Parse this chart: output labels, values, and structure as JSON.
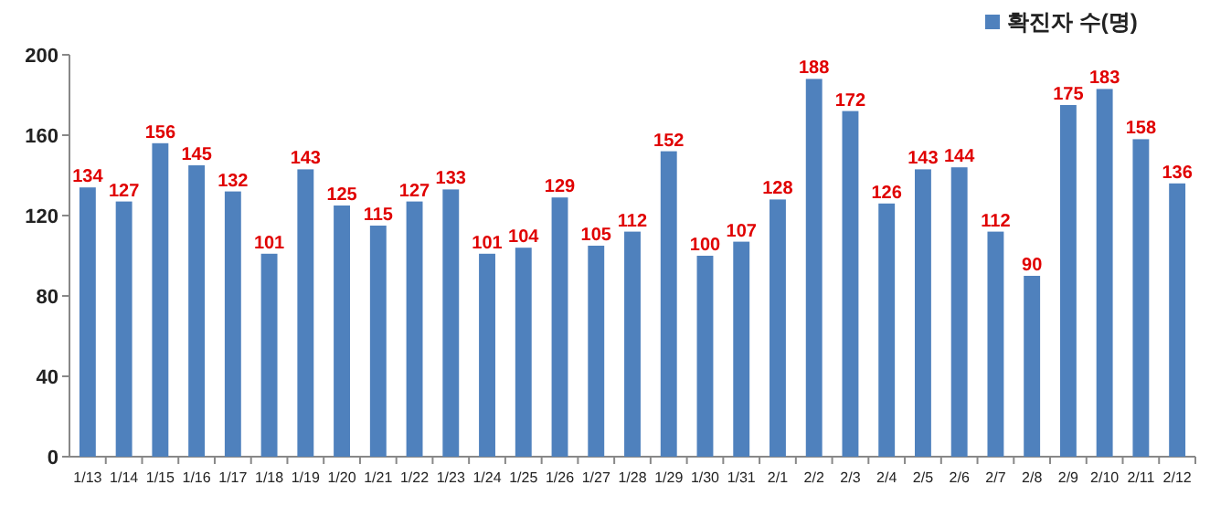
{
  "chart_data": {
    "type": "bar",
    "categories": [
      "1/13",
      "1/14",
      "1/15",
      "1/16",
      "1/17",
      "1/18",
      "1/19",
      "1/20",
      "1/21",
      "1/22",
      "1/23",
      "1/24",
      "1/25",
      "1/26",
      "1/27",
      "1/28",
      "1/29",
      "1/30",
      "1/31",
      "2/1",
      "2/2",
      "2/3",
      "2/4",
      "2/5",
      "2/6",
      "2/7",
      "2/8",
      "2/9",
      "2/10",
      "2/11",
      "2/12"
    ],
    "series": [
      {
        "name": "확진자 수(명)",
        "color": "#4f81bd",
        "values": [
          134,
          127,
          156,
          145,
          132,
          101,
          143,
          125,
          115,
          127,
          133,
          101,
          104,
          129,
          105,
          112,
          152,
          100,
          107,
          128,
          188,
          172,
          126,
          143,
          144,
          112,
          90,
          175,
          183,
          158,
          136
        ]
      }
    ],
    "ylim": [
      0,
      200
    ],
    "yticks": [
      0,
      40,
      80,
      120,
      160,
      200
    ],
    "data_labels": true,
    "legend": "top right",
    "grid": false
  }
}
